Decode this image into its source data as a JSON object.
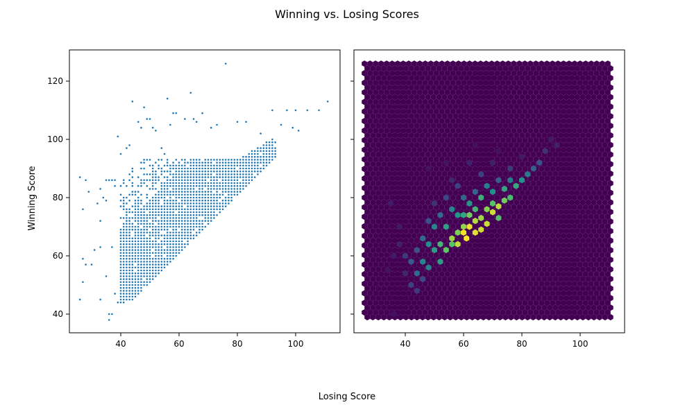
{
  "chart_data": {
    "type": "scatter",
    "title": "Winning vs. Losing Scores",
    "xlabel": "Losing Score",
    "ylabel": "Winning Score",
    "xlim": [
      22,
      115
    ],
    "ylim": [
      34,
      130
    ],
    "xticks": [
      40,
      60,
      80,
      100
    ],
    "yticks": [
      40,
      60,
      80,
      100,
      120
    ],
    "grid": false,
    "panels": [
      {
        "kind": "scatter",
        "marker_color": "#1f77b4"
      },
      {
        "kind": "hexbin",
        "colormap": "viridis",
        "background_color": "#440154"
      }
    ],
    "points": [
      [
        26,
        45
      ],
      [
        26,
        87
      ],
      [
        27,
        76
      ],
      [
        28,
        86
      ],
      [
        29,
        82
      ],
      [
        27,
        51
      ],
      [
        27,
        59
      ],
      [
        28,
        57
      ],
      [
        30,
        57
      ],
      [
        31,
        62
      ],
      [
        32,
        78
      ],
      [
        33,
        83
      ],
      [
        33,
        72
      ],
      [
        33,
        45
      ],
      [
        33,
        63
      ],
      [
        34,
        80
      ],
      [
        35,
        86
      ],
      [
        35,
        79
      ],
      [
        35,
        53
      ],
      [
        36,
        38
      ],
      [
        36,
        40
      ],
      [
        36,
        86
      ],
      [
        37,
        40
      ],
      [
        37,
        86
      ],
      [
        37,
        63
      ],
      [
        38,
        86
      ],
      [
        38,
        84
      ],
      [
        38,
        47
      ],
      [
        39,
        101
      ],
      [
        39,
        44
      ],
      [
        40,
        95
      ],
      [
        41,
        44
      ],
      [
        42,
        97
      ],
      [
        43,
        98
      ],
      [
        44,
        113
      ],
      [
        44,
        90
      ],
      [
        46,
        106
      ],
      [
        47,
        104
      ],
      [
        48,
        111
      ],
      [
        49,
        107
      ],
      [
        50,
        107
      ],
      [
        51,
        104
      ],
      [
        52,
        103
      ],
      [
        54,
        97
      ],
      [
        55,
        95
      ],
      [
        56,
        114
      ],
      [
        57,
        105
      ],
      [
        58,
        109
      ],
      [
        59,
        109
      ],
      [
        62,
        107
      ],
      [
        64,
        116
      ],
      [
        65,
        107
      ],
      [
        66,
        106
      ],
      [
        68,
        109
      ],
      [
        71,
        104
      ],
      [
        73,
        105
      ],
      [
        76,
        126
      ],
      [
        80,
        106
      ],
      [
        83,
        106
      ],
      [
        88,
        102
      ],
      [
        92,
        110
      ],
      [
        95,
        105
      ],
      [
        97,
        110
      ],
      [
        99,
        104
      ],
      [
        100,
        110
      ],
      [
        101,
        103
      ],
      [
        104,
        110
      ],
      [
        108,
        110
      ],
      [
        111,
        113
      ]
    ],
    "hexbins": [
      [
        61,
        66,
        1.0
      ],
      [
        60,
        68,
        0.98
      ],
      [
        62,
        70,
        0.97
      ],
      [
        64,
        68,
        0.95
      ],
      [
        66,
        69,
        0.93
      ],
      [
        68,
        71,
        0.92
      ],
      [
        70,
        75,
        0.92
      ],
      [
        72,
        77,
        0.9
      ],
      [
        58,
        64,
        0.9
      ],
      [
        64,
        72,
        0.88
      ],
      [
        56,
        66,
        0.85
      ],
      [
        66,
        73,
        0.85
      ],
      [
        60,
        70,
        0.83
      ],
      [
        68,
        76,
        0.82
      ],
      [
        58,
        68,
        0.8
      ],
      [
        74,
        79,
        0.78
      ],
      [
        62,
        74,
        0.78
      ],
      [
        54,
        62,
        0.75
      ],
      [
        56,
        64,
        0.72
      ],
      [
        70,
        78,
        0.72
      ],
      [
        72,
        73,
        0.7
      ],
      [
        76,
        80,
        0.68
      ],
      [
        52,
        64,
        0.65
      ],
      [
        64,
        76,
        0.65
      ],
      [
        66,
        80,
        0.62
      ],
      [
        78,
        84,
        0.6
      ],
      [
        74,
        83,
        0.58
      ],
      [
        60,
        74,
        0.58
      ],
      [
        54,
        70,
        0.56
      ],
      [
        50,
        62,
        0.55
      ],
      [
        52,
        58,
        0.55
      ],
      [
        58,
        74,
        0.52
      ],
      [
        62,
        78,
        0.52
      ],
      [
        70,
        82,
        0.5
      ],
      [
        80,
        86,
        0.5
      ],
      [
        48,
        64,
        0.48
      ],
      [
        50,
        70,
        0.46
      ],
      [
        56,
        76,
        0.45
      ],
      [
        46,
        58,
        0.45
      ],
      [
        48,
        56,
        0.42
      ],
      [
        68,
        84,
        0.42
      ],
      [
        76,
        86,
        0.4
      ],
      [
        82,
        88,
        0.4
      ],
      [
        44,
        54,
        0.35
      ],
      [
        46,
        66,
        0.35
      ],
      [
        52,
        74,
        0.35
      ],
      [
        60,
        80,
        0.34
      ],
      [
        64,
        82,
        0.32
      ],
      [
        72,
        86,
        0.3
      ],
      [
        84,
        90,
        0.3
      ],
      [
        86,
        92,
        0.25
      ],
      [
        42,
        58,
        0.28
      ],
      [
        44,
        62,
        0.25
      ],
      [
        48,
        72,
        0.25
      ],
      [
        54,
        80,
        0.22
      ],
      [
        58,
        84,
        0.2
      ],
      [
        66,
        88,
        0.2
      ],
      [
        76,
        90,
        0.18
      ],
      [
        88,
        96,
        0.15
      ],
      [
        40,
        60,
        0.18
      ],
      [
        42,
        50,
        0.2
      ],
      [
        44,
        48,
        0.18
      ],
      [
        46,
        52,
        0.22
      ],
      [
        50,
        78,
        0.15
      ],
      [
        56,
        86,
        0.12
      ],
      [
        40,
        54,
        0.12
      ],
      [
        38,
        64,
        0.1
      ],
      [
        36,
        60,
        0.08
      ],
      [
        38,
        70,
        0.08
      ],
      [
        62,
        92,
        0.1
      ],
      [
        70,
        92,
        0.1
      ],
      [
        80,
        94,
        0.08
      ],
      [
        90,
        100,
        0.08
      ],
      [
        92,
        98,
        0.1
      ],
      [
        35,
        78,
        0.08
      ],
      [
        34,
        55,
        0.06
      ],
      [
        36,
        40,
        0.05
      ],
      [
        48,
        90,
        0.06
      ],
      [
        54,
        92,
        0.06
      ],
      [
        64,
        98,
        0.05
      ],
      [
        72,
        96,
        0.05
      ]
    ]
  }
}
